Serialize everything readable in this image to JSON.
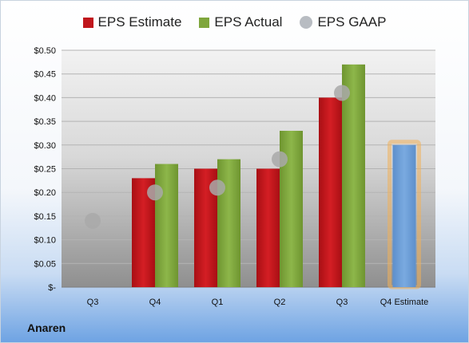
{
  "company": "Anaren",
  "chart_data": {
    "type": "bar",
    "categories": [
      "Q3",
      "Q4",
      "Q1",
      "Q2",
      "Q3",
      "Q4 Estimate"
    ],
    "series": [
      {
        "name": "EPS Estimate",
        "color": "#c0161c",
        "values": [
          null,
          0.23,
          0.25,
          0.25,
          0.4,
          null
        ]
      },
      {
        "name": "EPS Actual",
        "color": "#7fa63c",
        "values": [
          null,
          0.26,
          0.27,
          0.33,
          0.47,
          null
        ]
      },
      {
        "name": "EPS GAAP",
        "color": "#a9a9a9",
        "marker": "dot",
        "values": [
          0.14,
          0.2,
          0.21,
          0.27,
          0.41,
          null
        ]
      }
    ],
    "estimate_bar": {
      "category": "Q4 Estimate",
      "value": 0.3,
      "color": "#6e9fd6",
      "glow": "#f0b15a"
    },
    "yticks": [
      "$0.50",
      "$0.45",
      "$0.40",
      "$0.35",
      "$0.30",
      "$0.25",
      "$0.20",
      "$0.15",
      "$0.10",
      "$0.05",
      "$-"
    ],
    "ylim": [
      0,
      0.5
    ],
    "grid": true,
    "legend": "top"
  }
}
